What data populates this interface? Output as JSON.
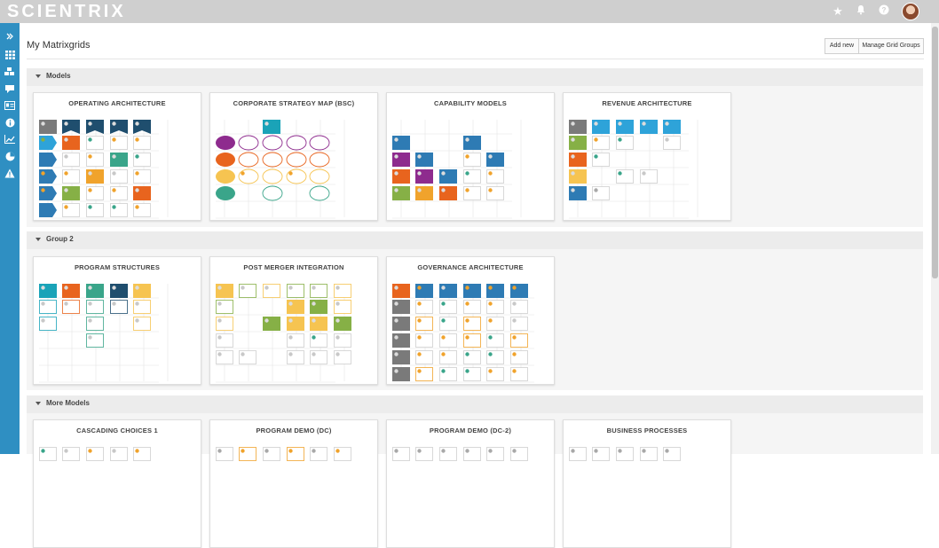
{
  "app": {
    "logo": "SCIENTRIX"
  },
  "topbar": {
    "icons": [
      "star-icon",
      "bell-icon",
      "help-icon"
    ]
  },
  "sidebar": {
    "icons": [
      "expand-icon",
      "grid-icon",
      "layers-icon",
      "map-icon",
      "id-card-icon",
      "info-icon",
      "chart-icon",
      "pie-icon",
      "warning-icon"
    ]
  },
  "header": {
    "title": "My Matrixgrids",
    "add_new": "Add new",
    "manage_groups": "Manage Grid Groups"
  },
  "colors": {
    "navy": "#1f4e6e",
    "blue": "#2e7bb4",
    "sky": "#2ea3d9",
    "teal": "#1aa3b8",
    "green": "#3aa58a",
    "olive": "#86b046",
    "orange": "#e8641e",
    "amber": "#f0a32c",
    "yellow": "#f6c451",
    "purple": "#8e2b8e",
    "gray": "#7a7a7a",
    "lightgray": "#a9a9a9"
  },
  "groups": [
    {
      "name": "Models",
      "cards": [
        {
          "title": "OPERATING ARCHITECTURE"
        },
        {
          "title": "CORPORATE STRATEGY MAP (BSC)"
        },
        {
          "title": "CAPABILITY MODELS"
        },
        {
          "title": "REVENUE ARCHITECTURE"
        }
      ]
    },
    {
      "name": "Group 2",
      "cards": [
        {
          "title": "PROGRAM STRUCTURES"
        },
        {
          "title": "POST MERGER INTEGRATION"
        },
        {
          "title": "GOVERNANCE ARCHITECTURE"
        }
      ]
    },
    {
      "name": "More Models",
      "cards": [
        {
          "title": "CASCADING CHOICES 1"
        },
        {
          "title": "PROGRAM DEMO (DC)"
        },
        {
          "title": "PROGRAM DEMO (DC-2)"
        },
        {
          "title": "BUSINESS PROCESSES"
        }
      ]
    }
  ]
}
